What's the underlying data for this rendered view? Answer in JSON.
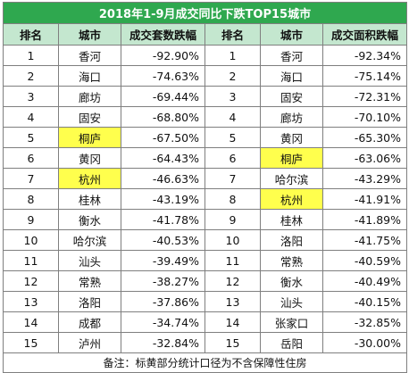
{
  "title": "2018年1-9月成交同比下跌TOP15城市",
  "headers": [
    "排名",
    "城市",
    "成交套数跌幅",
    "排名",
    "城市",
    "成交面积跌幅"
  ],
  "rows": [
    {
      "rank1": "1",
      "city1": "香河",
      "val1": "-92.90%",
      "hl1": false,
      "rank2": "1",
      "city2": "香河",
      "val2": "-92.34%",
      "hl2": false
    },
    {
      "rank1": "2",
      "city1": "海口",
      "val1": "-74.63%",
      "hl1": false,
      "rank2": "2",
      "city2": "海口",
      "val2": "-75.14%",
      "hl2": false
    },
    {
      "rank1": "3",
      "city1": "廊坊",
      "val1": "-69.44%",
      "hl1": false,
      "rank2": "3",
      "city2": "固安",
      "val2": "-72.31%",
      "hl2": false
    },
    {
      "rank1": "4",
      "city1": "固安",
      "val1": "-68.80%",
      "hl1": false,
      "rank2": "4",
      "city2": "廊坊",
      "val2": "-70.10%",
      "hl2": false
    },
    {
      "rank1": "5",
      "city1": "桐庐",
      "val1": "-67.50%",
      "hl1": true,
      "rank2": "5",
      "city2": "黄冈",
      "val2": "-65.30%",
      "hl2": false
    },
    {
      "rank1": "6",
      "city1": "黄冈",
      "val1": "-64.43%",
      "hl1": false,
      "rank2": "6",
      "city2": "桐庐",
      "val2": "-63.06%",
      "hl2": true
    },
    {
      "rank1": "7",
      "city1": "杭州",
      "val1": "-46.63%",
      "hl1": true,
      "rank2": "7",
      "city2": "哈尔滨",
      "val2": "-43.29%",
      "hl2": false
    },
    {
      "rank1": "8",
      "city1": "桂林",
      "val1": "-43.19%",
      "hl1": false,
      "rank2": "8",
      "city2": "杭州",
      "val2": "-41.91%",
      "hl2": true
    },
    {
      "rank1": "9",
      "city1": "衡水",
      "val1": "-41.78%",
      "hl1": false,
      "rank2": "9",
      "city2": "桂林",
      "val2": "-41.89%",
      "hl2": false
    },
    {
      "rank1": "10",
      "city1": "哈尔滨",
      "val1": "-40.53%",
      "hl1": false,
      "rank2": "10",
      "city2": "洛阳",
      "val2": "-41.75%",
      "hl2": false
    },
    {
      "rank1": "11",
      "city1": "汕头",
      "val1": "-39.49%",
      "hl1": false,
      "rank2": "11",
      "city2": "常熟",
      "val2": "-40.59%",
      "hl2": false
    },
    {
      "rank1": "12",
      "city1": "常熟",
      "val1": "-38.27%",
      "hl1": false,
      "rank2": "12",
      "city2": "衡水",
      "val2": "-40.49%",
      "hl2": false
    },
    {
      "rank1": "13",
      "city1": "洛阳",
      "val1": "-37.86%",
      "hl1": false,
      "rank2": "13",
      "city2": "汕头",
      "val2": "-40.15%",
      "hl2": false
    },
    {
      "rank1": "14",
      "city1": "成都",
      "val1": "-34.74%",
      "hl1": false,
      "rank2": "14",
      "city2": "张家口",
      "val2": "-32.85%",
      "hl2": false
    },
    {
      "rank1": "15",
      "city1": "泸州",
      "val1": "-32.84%",
      "hl1": false,
      "rank2": "15",
      "city2": "岳阳",
      "val2": "-30.00%",
      "hl2": false
    }
  ],
  "note": "备注：标黄部分统计口径为不含保障性住房",
  "colors": {
    "title_bg": "#2fa84f",
    "header_bg": "#c4e7cf",
    "highlight": "#ffff4d",
    "border": "#7f7f7f"
  }
}
